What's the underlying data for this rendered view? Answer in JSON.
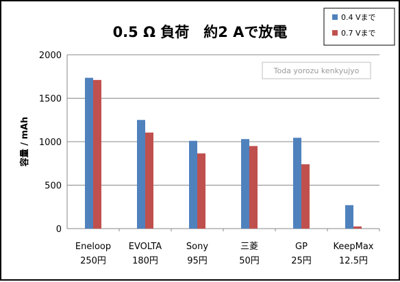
{
  "chart_data": {
    "type": "bar",
    "title": "0.5 Ω 負荷　約2 Aで放電",
    "ylabel": "容量 / mAh",
    "xlabel": "",
    "ylim": [
      0,
      2000
    ],
    "yticks": [
      0,
      500,
      1000,
      1500,
      2000
    ],
    "categories": [
      {
        "name": "Eneloop",
        "price": "250円"
      },
      {
        "name": "EVOLTA",
        "price": "180円"
      },
      {
        "name": "Sony",
        "price": "95円"
      },
      {
        "name": "三菱",
        "price": "50円"
      },
      {
        "name": "GP",
        "price": "25円"
      },
      {
        "name": "KeepMax",
        "price": "12.5円"
      }
    ],
    "series": [
      {
        "name": "0.4 Vまで",
        "color": "#4F81BD",
        "values": [
          1735,
          1250,
          1010,
          1030,
          1045,
          270
        ]
      },
      {
        "name": "0.7 Vまで",
        "color": "#C0504D",
        "values": [
          1710,
          1105,
          865,
          950,
          740,
          25
        ]
      }
    ],
    "grid": true,
    "legend_position": "top-right",
    "watermark": "Toda yorozu kenkyujyo"
  }
}
